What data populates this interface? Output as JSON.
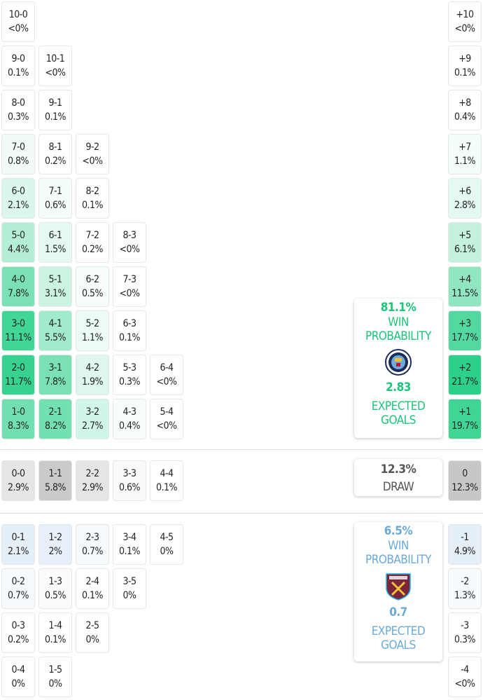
{
  "colors": {
    "win": "#1cc47a",
    "loss": "#6aaad8",
    "draw": "#555555"
  },
  "win_rows": [
    [
      [
        "10-0",
        "<0%"
      ]
    ],
    [
      [
        "9-0",
        "0.1%"
      ],
      [
        "10-1",
        "<0%"
      ]
    ],
    [
      [
        "8-0",
        "0.3%"
      ],
      [
        "9-1",
        "0.1%"
      ]
    ],
    [
      [
        "7-0",
        "0.8%"
      ],
      [
        "8-1",
        "0.2%"
      ],
      [
        "9-2",
        "<0%"
      ]
    ],
    [
      [
        "6-0",
        "2.1%"
      ],
      [
        "7-1",
        "0.6%"
      ],
      [
        "8-2",
        "0.1%"
      ]
    ],
    [
      [
        "5-0",
        "4.4%"
      ],
      [
        "6-1",
        "1.5%"
      ],
      [
        "7-2",
        "0.2%"
      ],
      [
        "8-3",
        "<0%"
      ]
    ],
    [
      [
        "4-0",
        "7.8%"
      ],
      [
        "5-1",
        "3.1%"
      ],
      [
        "6-2",
        "0.5%"
      ],
      [
        "7-3",
        "<0%"
      ]
    ],
    [
      [
        "3-0",
        "11.1%"
      ],
      [
        "4-1",
        "5.5%"
      ],
      [
        "5-2",
        "1.1%"
      ],
      [
        "6-3",
        "0.1%"
      ]
    ],
    [
      [
        "2-0",
        "11.7%"
      ],
      [
        "3-1",
        "7.8%"
      ],
      [
        "4-2",
        "1.9%"
      ],
      [
        "5-3",
        "0.3%"
      ],
      [
        "6-4",
        "<0%"
      ]
    ],
    [
      [
        "1-0",
        "8.3%"
      ],
      [
        "2-1",
        "8.2%"
      ],
      [
        "3-2",
        "2.7%"
      ],
      [
        "4-3",
        "0.4%"
      ],
      [
        "5-4",
        "<0%"
      ]
    ]
  ],
  "win_margins": [
    [
      "+10",
      "<0%"
    ],
    [
      "+9",
      "0.1%"
    ],
    [
      "+8",
      "0.4%"
    ],
    [
      "+7",
      "1.1%"
    ],
    [
      "+6",
      "2.8%"
    ],
    [
      "+5",
      "6.1%"
    ],
    [
      "+4",
      "11.5%"
    ],
    [
      "+3",
      "17.7%"
    ],
    [
      "+2",
      "21.7%"
    ],
    [
      "+1",
      "19.7%"
    ]
  ],
  "draw_row": [
    [
      "0-0",
      "2.9%"
    ],
    [
      "1-1",
      "5.8%"
    ],
    [
      "2-2",
      "2.9%"
    ],
    [
      "3-3",
      "0.6%"
    ],
    [
      "4-4",
      "0.1%"
    ]
  ],
  "draw_margin": [
    "0",
    "12.3%"
  ],
  "loss_rows": [
    [
      [
        "0-1",
        "2.1%"
      ],
      [
        "1-2",
        "2%"
      ],
      [
        "2-3",
        "0.7%"
      ],
      [
        "3-4",
        "0.1%"
      ],
      [
        "4-5",
        "0%"
      ]
    ],
    [
      [
        "0-2",
        "0.7%"
      ],
      [
        "1-3",
        "0.5%"
      ],
      [
        "2-4",
        "0.1%"
      ],
      [
        "3-5",
        "0%"
      ]
    ],
    [
      [
        "0-3",
        "0.2%"
      ],
      [
        "1-4",
        "0.1%"
      ],
      [
        "2-5",
        "0%"
      ]
    ],
    [
      [
        "0-4",
        "0%"
      ],
      [
        "1-5",
        "0%"
      ]
    ]
  ],
  "loss_margins": [
    [
      "-1",
      "4.9%"
    ],
    [
      "-2",
      "1.3%"
    ],
    [
      "-3",
      "0.3%"
    ],
    [
      "-4",
      "<0%"
    ]
  ],
  "home_card": {
    "win_pct": "81.1%",
    "win_label_1": "WIN",
    "win_label_2": "PROBABILITY",
    "xg": "2.83",
    "xg_label_1": "EXPECTED",
    "xg_label_2": "GOALS",
    "crest": "manchester-city-crest"
  },
  "draw_card": {
    "pct": "12.3%",
    "label": "DRAW"
  },
  "away_card": {
    "win_pct": "6.5%",
    "win_label_1": "WIN",
    "win_label_2": "PROBABILITY",
    "xg": "0.7",
    "xg_label_1": "EXPECTED",
    "xg_label_2": "GOALS",
    "crest": "west-ham-united-crest"
  }
}
